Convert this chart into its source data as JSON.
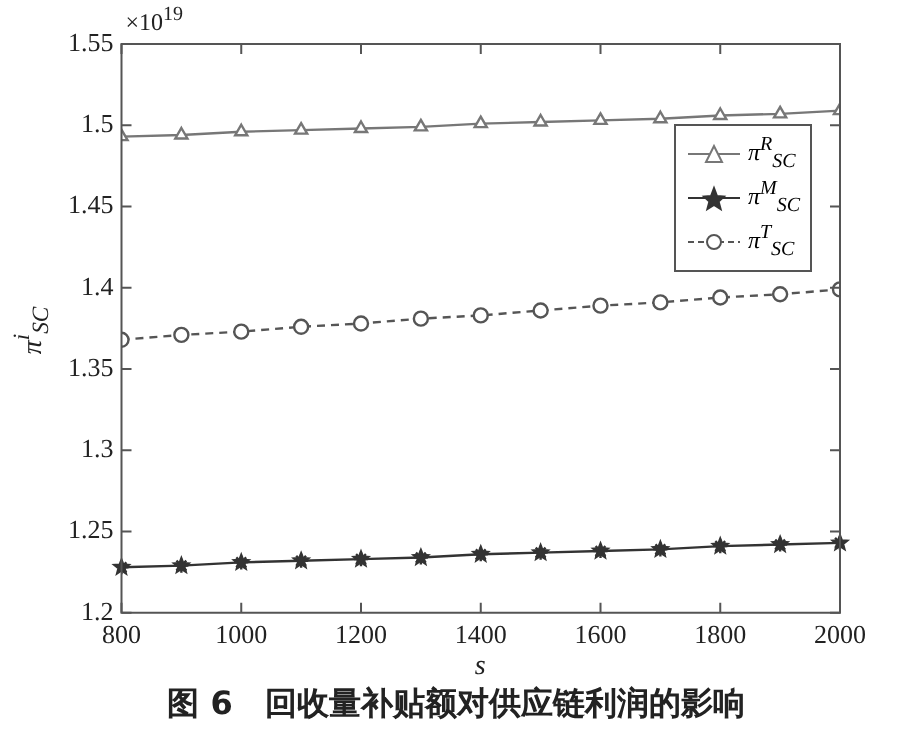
{
  "chart_data": {
    "type": "line",
    "title": "图 6　回收量补贴额对供应链利润的影响",
    "xlabel": "s",
    "ylabel": "π$^{i}$$_{SC}$",
    "annotations": [
      "×10$^{19}$"
    ],
    "x": [
      800,
      900,
      1000,
      1100,
      1200,
      1300,
      1400,
      1500,
      1600,
      1700,
      1800,
      1900,
      2000
    ],
    "xlim": [
      800,
      2000
    ],
    "xticks": [
      800,
      1000,
      1200,
      1400,
      1600,
      1800,
      2000
    ],
    "ylim": [
      1.2,
      1.55
    ],
    "yticks": [
      1.2,
      1.25,
      1.3,
      1.35,
      1.4,
      1.45,
      1.5,
      1.55
    ],
    "grid": false,
    "legend": "top right",
    "series": [
      {
        "name": "π$^{R}$$_{SC}$",
        "color": "#777777",
        "marker": "triangle",
        "line_style": "solid",
        "values": [
          1.493,
          1.494,
          1.496,
          1.497,
          1.498,
          1.499,
          1.501,
          1.502,
          1.503,
          1.504,
          1.506,
          1.507,
          1.509
        ]
      },
      {
        "name": "π$^{M}$$_{SC}$",
        "color": "#333333",
        "marker": "star",
        "line_style": "solid",
        "values": [
          1.228,
          1.229,
          1.231,
          1.232,
          1.233,
          1.234,
          1.236,
          1.237,
          1.238,
          1.239,
          1.241,
          1.242,
          1.243
        ]
      },
      {
        "name": "π$^{T}$$_{SC}$",
        "color": "#555555",
        "marker": "circle",
        "line_style": "dashed",
        "values": [
          1.368,
          1.371,
          1.373,
          1.376,
          1.378,
          1.381,
          1.383,
          1.386,
          1.389,
          1.391,
          1.394,
          1.396,
          1.399
        ]
      }
    ]
  }
}
